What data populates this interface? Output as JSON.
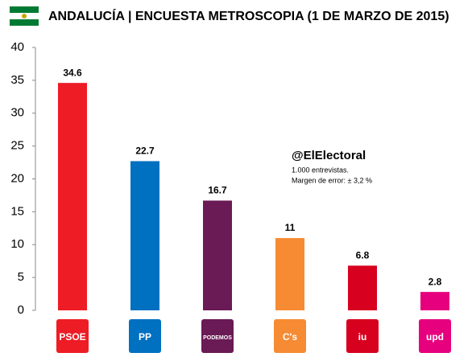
{
  "chart_data": {
    "type": "bar",
    "title": "ANDALUCÍA |   ENCUESTA METROSCOPIA (1 DE MARZO DE  2015)",
    "categories": [
      "PSOE",
      "PP",
      "PODEMOS",
      "C's",
      "iu",
      "upd"
    ],
    "values": [
      34.6,
      22.7,
      16.7,
      11,
      6.8,
      2.8
    ],
    "colors": [
      "#ee1c25",
      "#0070c0",
      "#6a1a55",
      "#f68b33",
      "#d7001e",
      "#e6007e"
    ],
    "ylim": [
      0,
      40
    ],
    "yticks": [
      0,
      5,
      10,
      15,
      20,
      25,
      30,
      35,
      40
    ],
    "annotations": [
      "@ElElectoral",
      "1.000 entrevistas.",
      "Margen de error: ± 3,2 %"
    ]
  }
}
